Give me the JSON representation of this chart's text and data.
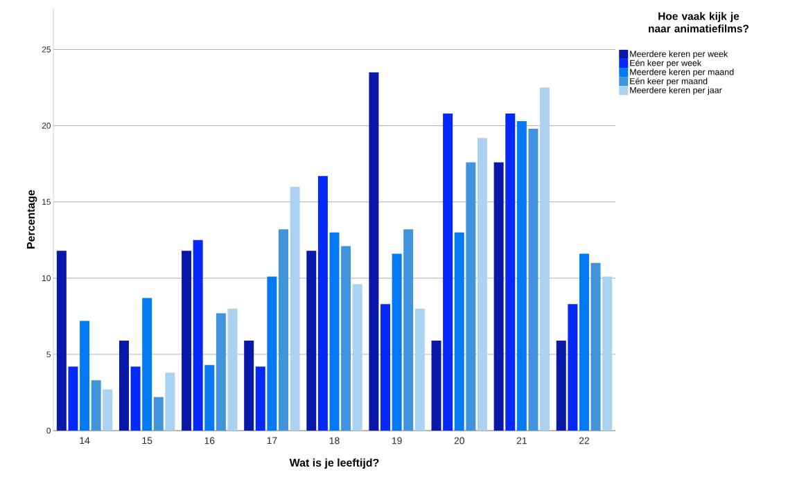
{
  "chart_data": {
    "type": "bar",
    "xlabel": "Wat is je leeftijd?",
    "ylabel": "Percentage",
    "legend_title": "Hoe vaak kijk je naar animatiefilms?",
    "categories": [
      "14",
      "15",
      "16",
      "17",
      "18",
      "19",
      "20",
      "21",
      "22"
    ],
    "series": [
      {
        "name": "Meerdere keren per week",
        "color": "#0a18a8",
        "values": [
          11.8,
          5.9,
          11.8,
          5.9,
          11.8,
          23.5,
          5.9,
          17.6,
          5.9
        ]
      },
      {
        "name": "Eén keer per week",
        "color": "#0529fc",
        "values": [
          4.2,
          4.2,
          12.5,
          4.2,
          16.7,
          8.3,
          20.8,
          20.8,
          8.3
        ]
      },
      {
        "name": "Meerdere keren per maand",
        "color": "#0479f4",
        "values": [
          7.2,
          8.7,
          4.3,
          10.1,
          13.0,
          11.6,
          13.0,
          20.3,
          11.6
        ]
      },
      {
        "name": "Eén keer per maand",
        "color": "#4194dc",
        "values": [
          3.3,
          2.2,
          7.7,
          13.2,
          12.1,
          13.2,
          17.6,
          19.8,
          11.0
        ]
      },
      {
        "name": "Meerdere keren per jaar",
        "color": "#acd2f1",
        "values": [
          2.7,
          3.8,
          8.0,
          16.0,
          9.6,
          8.0,
          19.2,
          22.5,
          10.1
        ]
      }
    ],
    "ylim": [
      0,
      27.7
    ],
    "yticks": [
      0,
      5,
      10,
      15,
      20,
      25
    ],
    "grid": "y",
    "legend": "right"
  }
}
